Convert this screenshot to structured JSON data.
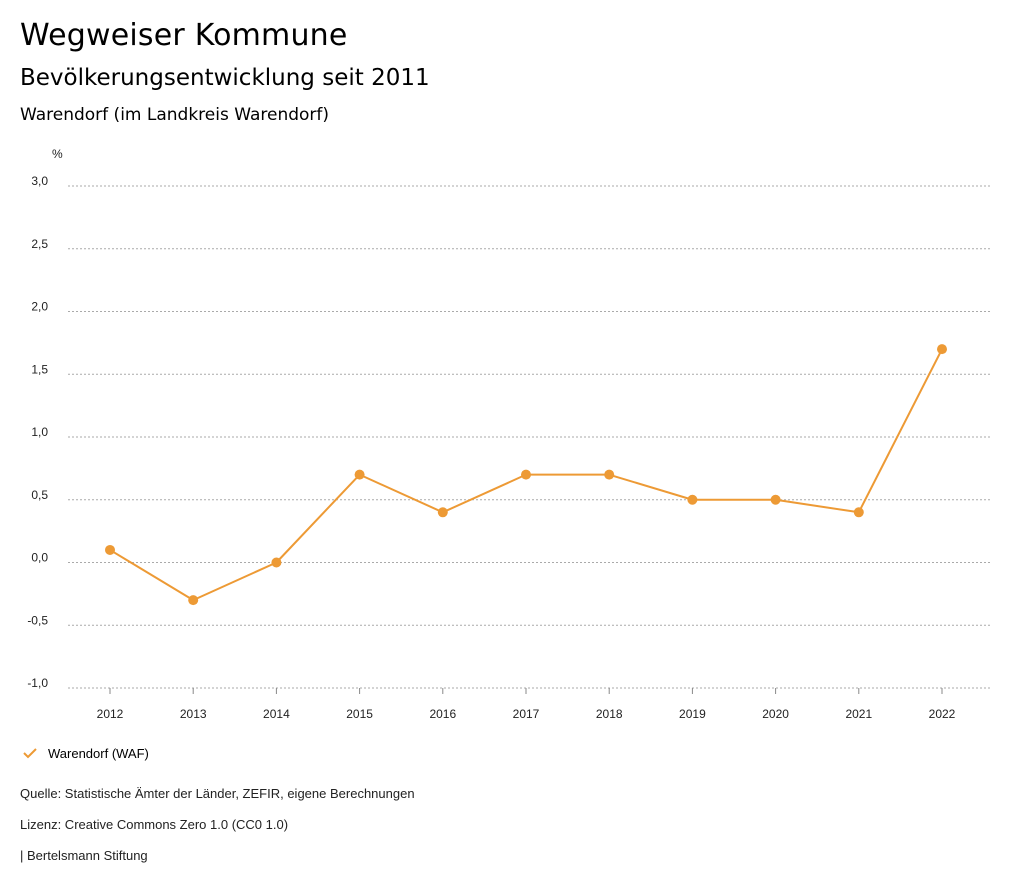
{
  "header": {
    "title": "Wegweiser Kommune",
    "subtitle": "Bevölkerungsentwicklung seit 2011",
    "region": "Warendorf (im Landkreis Warendorf)"
  },
  "colors": {
    "series": "#ed9a35",
    "grid": "#aaaaaa"
  },
  "chart_data": {
    "type": "line",
    "title": "Bevölkerungsentwicklung seit 2011",
    "ylabel": "%",
    "xlabel": "",
    "ylim": [
      -1.0,
      3.0
    ],
    "yticks": [
      "-1,0",
      "-0,5",
      "0,0",
      "0,5",
      "1,0",
      "1,5",
      "2,0",
      "2,5",
      "3,0"
    ],
    "ytick_values": [
      -1.0,
      -0.5,
      0.0,
      0.5,
      1.0,
      1.5,
      2.0,
      2.5,
      3.0
    ],
    "categories": [
      "2012",
      "2013",
      "2014",
      "2015",
      "2016",
      "2017",
      "2018",
      "2019",
      "2020",
      "2021",
      "2022"
    ],
    "series": [
      {
        "name": "Warendorf (WAF)",
        "values": [
          0.1,
          -0.3,
          0.0,
          0.7,
          0.4,
          0.7,
          0.7,
          0.5,
          0.5,
          0.4,
          1.7
        ]
      }
    ],
    "grid": true,
    "legend": "bottom-left"
  },
  "legend": {
    "label": "Warendorf (WAF)",
    "icon": "check-icon"
  },
  "footer": {
    "source": "Quelle: Statistische Ämter der Länder, ZEFIR, eigene Berechnungen",
    "license": "Lizenz: Creative Commons Zero 1.0 (CC0 1.0)",
    "publisher": "| Bertelsmann Stiftung"
  }
}
